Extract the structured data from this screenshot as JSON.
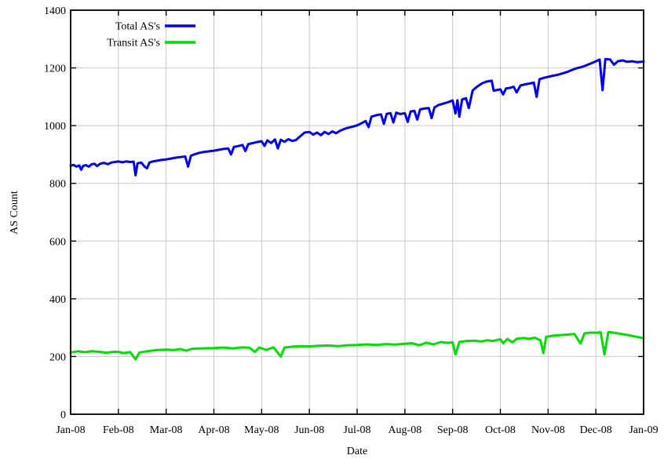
{
  "chart_data": {
    "type": "line",
    "title": "",
    "xlabel": "Date",
    "ylabel": "AS Count",
    "grid": true,
    "legend_position": "top-left-inside",
    "ylim": [
      0,
      1400
    ],
    "y_ticks": [
      0,
      200,
      400,
      600,
      800,
      1000,
      1200,
      1400
    ],
    "x_tick_labels": [
      "Jan-08",
      "Feb-08",
      "Mar-08",
      "Apr-08",
      "May-08",
      "Jun-08",
      "Jul-08",
      "Aug-08",
      "Sep-08",
      "Oct-08",
      "Nov-08",
      "Dec-08",
      "Jan-09"
    ],
    "x_unit": "months since Jan-08",
    "series": [
      {
        "name": "Total AS's",
        "color": "#0000ee",
        "points": [
          [
            0.0,
            861
          ],
          [
            0.06,
            864
          ],
          [
            0.12,
            858
          ],
          [
            0.18,
            862
          ],
          [
            0.22,
            847
          ],
          [
            0.26,
            860
          ],
          [
            0.32,
            863
          ],
          [
            0.38,
            858
          ],
          [
            0.44,
            866
          ],
          [
            0.5,
            868
          ],
          [
            0.55,
            860
          ],
          [
            0.62,
            868
          ],
          [
            0.7,
            871
          ],
          [
            0.78,
            866
          ],
          [
            0.85,
            872
          ],
          [
            0.93,
            874
          ],
          [
            1.0,
            876
          ],
          [
            1.08,
            873
          ],
          [
            1.16,
            876
          ],
          [
            1.25,
            874
          ],
          [
            1.32,
            875
          ],
          [
            1.36,
            828
          ],
          [
            1.4,
            869
          ],
          [
            1.48,
            872
          ],
          [
            1.55,
            858
          ],
          [
            1.6,
            852
          ],
          [
            1.65,
            872
          ],
          [
            1.72,
            876
          ],
          [
            1.8,
            878
          ],
          [
            1.9,
            881
          ],
          [
            2.0,
            883
          ],
          [
            2.1,
            886
          ],
          [
            2.2,
            889
          ],
          [
            2.3,
            891
          ],
          [
            2.4,
            893
          ],
          [
            2.46,
            858
          ],
          [
            2.52,
            896
          ],
          [
            2.6,
            901
          ],
          [
            2.7,
            906
          ],
          [
            2.8,
            909
          ],
          [
            2.9,
            911
          ],
          [
            3.0,
            913
          ],
          [
            3.1,
            916
          ],
          [
            3.2,
            919
          ],
          [
            3.3,
            921
          ],
          [
            3.36,
            900
          ],
          [
            3.42,
            926
          ],
          [
            3.5,
            929
          ],
          [
            3.6,
            933
          ],
          [
            3.66,
            912
          ],
          [
            3.72,
            936
          ],
          [
            3.8,
            939
          ],
          [
            3.9,
            943
          ],
          [
            4.0,
            946
          ],
          [
            4.06,
            930
          ],
          [
            4.12,
            949
          ],
          [
            4.2,
            940
          ],
          [
            4.28,
            952
          ],
          [
            4.34,
            921
          ],
          [
            4.4,
            951
          ],
          [
            4.48,
            944
          ],
          [
            4.56,
            953
          ],
          [
            4.64,
            947
          ],
          [
            4.72,
            950
          ],
          [
            4.8,
            962
          ],
          [
            4.9,
            976
          ],
          [
            5.0,
            978
          ],
          [
            5.08,
            969
          ],
          [
            5.16,
            976
          ],
          [
            5.24,
            967
          ],
          [
            5.32,
            978
          ],
          [
            5.4,
            971
          ],
          [
            5.48,
            980
          ],
          [
            5.56,
            974
          ],
          [
            5.64,
            982
          ],
          [
            5.72,
            988
          ],
          [
            5.8,
            992
          ],
          [
            5.9,
            996
          ],
          [
            6.0,
            1001
          ],
          [
            6.1,
            1009
          ],
          [
            6.18,
            1016
          ],
          [
            6.24,
            995
          ],
          [
            6.3,
            1031
          ],
          [
            6.4,
            1036
          ],
          [
            6.5,
            1039
          ],
          [
            6.56,
            1006
          ],
          [
            6.62,
            1041
          ],
          [
            6.7,
            1043
          ],
          [
            6.76,
            1011
          ],
          [
            6.82,
            1045
          ],
          [
            6.9,
            1040
          ],
          [
            7.0,
            1043
          ],
          [
            7.06,
            1013
          ],
          [
            7.12,
            1049
          ],
          [
            7.2,
            1051
          ],
          [
            7.26,
            1021
          ],
          [
            7.32,
            1056
          ],
          [
            7.4,
            1059
          ],
          [
            7.5,
            1061
          ],
          [
            7.56,
            1026
          ],
          [
            7.62,
            1063
          ],
          [
            7.7,
            1071
          ],
          [
            7.8,
            1076
          ],
          [
            7.9,
            1081
          ],
          [
            8.0,
            1087
          ],
          [
            8.06,
            1042
          ],
          [
            8.1,
            1088
          ],
          [
            8.14,
            1031
          ],
          [
            8.2,
            1091
          ],
          [
            8.28,
            1095
          ],
          [
            8.34,
            1061
          ],
          [
            8.42,
            1122
          ],
          [
            8.52,
            1136
          ],
          [
            8.62,
            1147
          ],
          [
            8.72,
            1153
          ],
          [
            8.82,
            1156
          ],
          [
            8.86,
            1121
          ],
          [
            8.92,
            1123
          ],
          [
            9.0,
            1126
          ],
          [
            9.06,
            1108
          ],
          [
            9.12,
            1129
          ],
          [
            9.2,
            1131
          ],
          [
            9.28,
            1135
          ],
          [
            9.34,
            1115
          ],
          [
            9.42,
            1139
          ],
          [
            9.52,
            1143
          ],
          [
            9.62,
            1146
          ],
          [
            9.7,
            1149
          ],
          [
            9.76,
            1100
          ],
          [
            9.82,
            1161
          ],
          [
            9.92,
            1166
          ],
          [
            10.0,
            1169
          ],
          [
            10.1,
            1173
          ],
          [
            10.2,
            1176
          ],
          [
            10.3,
            1181
          ],
          [
            10.4,
            1186
          ],
          [
            10.5,
            1193
          ],
          [
            10.6,
            1199
          ],
          [
            10.7,
            1203
          ],
          [
            10.8,
            1209
          ],
          [
            10.9,
            1216
          ],
          [
            11.0,
            1223
          ],
          [
            11.08,
            1229
          ],
          [
            11.14,
            1123
          ],
          [
            11.2,
            1231
          ],
          [
            11.3,
            1229
          ],
          [
            11.38,
            1211
          ],
          [
            11.46,
            1223
          ],
          [
            11.56,
            1226
          ],
          [
            11.66,
            1221
          ],
          [
            11.76,
            1223
          ],
          [
            11.86,
            1220
          ],
          [
            12.0,
            1222
          ]
        ]
      },
      {
        "name": "Transit AS's",
        "color": "#00dd00",
        "points": [
          [
            0.0,
            214
          ],
          [
            0.15,
            218
          ],
          [
            0.3,
            215
          ],
          [
            0.45,
            218
          ],
          [
            0.6,
            216
          ],
          [
            0.75,
            213
          ],
          [
            0.9,
            216
          ],
          [
            1.0,
            216
          ],
          [
            1.1,
            212
          ],
          [
            1.25,
            215
          ],
          [
            1.36,
            190
          ],
          [
            1.44,
            214
          ],
          [
            1.6,
            218
          ],
          [
            1.8,
            222
          ],
          [
            2.0,
            224
          ],
          [
            2.15,
            222
          ],
          [
            2.3,
            226
          ],
          [
            2.42,
            220
          ],
          [
            2.55,
            227
          ],
          [
            2.75,
            228
          ],
          [
            3.0,
            229
          ],
          [
            3.2,
            231
          ],
          [
            3.4,
            228
          ],
          [
            3.6,
            232
          ],
          [
            3.75,
            230
          ],
          [
            3.86,
            216
          ],
          [
            3.95,
            231
          ],
          [
            4.1,
            223
          ],
          [
            4.25,
            232
          ],
          [
            4.4,
            200
          ],
          [
            4.48,
            231
          ],
          [
            4.65,
            234
          ],
          [
            4.85,
            236
          ],
          [
            5.0,
            235
          ],
          [
            5.2,
            237
          ],
          [
            5.4,
            238
          ],
          [
            5.6,
            236
          ],
          [
            5.8,
            239
          ],
          [
            6.0,
            240
          ],
          [
            6.2,
            242
          ],
          [
            6.4,
            240
          ],
          [
            6.6,
            243
          ],
          [
            6.8,
            241
          ],
          [
            7.0,
            244
          ],
          [
            7.15,
            246
          ],
          [
            7.3,
            239
          ],
          [
            7.45,
            248
          ],
          [
            7.6,
            242
          ],
          [
            7.75,
            250
          ],
          [
            7.9,
            247
          ],
          [
            8.0,
            249
          ],
          [
            8.06,
            207
          ],
          [
            8.14,
            250
          ],
          [
            8.3,
            254
          ],
          [
            8.45,
            255
          ],
          [
            8.6,
            252
          ],
          [
            8.72,
            256
          ],
          [
            8.85,
            254
          ],
          [
            9.0,
            260
          ],
          [
            9.06,
            246
          ],
          [
            9.15,
            261
          ],
          [
            9.25,
            249
          ],
          [
            9.35,
            262
          ],
          [
            9.5,
            264
          ],
          [
            9.6,
            261
          ],
          [
            9.72,
            265
          ],
          [
            9.84,
            256
          ],
          [
            9.9,
            212
          ],
          [
            9.96,
            268
          ],
          [
            10.1,
            272
          ],
          [
            10.25,
            274
          ],
          [
            10.4,
            276
          ],
          [
            10.55,
            278
          ],
          [
            10.68,
            245
          ],
          [
            10.76,
            280
          ],
          [
            10.9,
            283
          ],
          [
            11.0,
            282
          ],
          [
            11.1,
            284
          ],
          [
            11.18,
            207
          ],
          [
            11.26,
            285
          ],
          [
            11.35,
            283
          ],
          [
            11.5,
            279
          ],
          [
            11.65,
            275
          ],
          [
            11.8,
            270
          ],
          [
            11.9,
            267
          ],
          [
            12.0,
            263
          ]
        ]
      }
    ]
  }
}
